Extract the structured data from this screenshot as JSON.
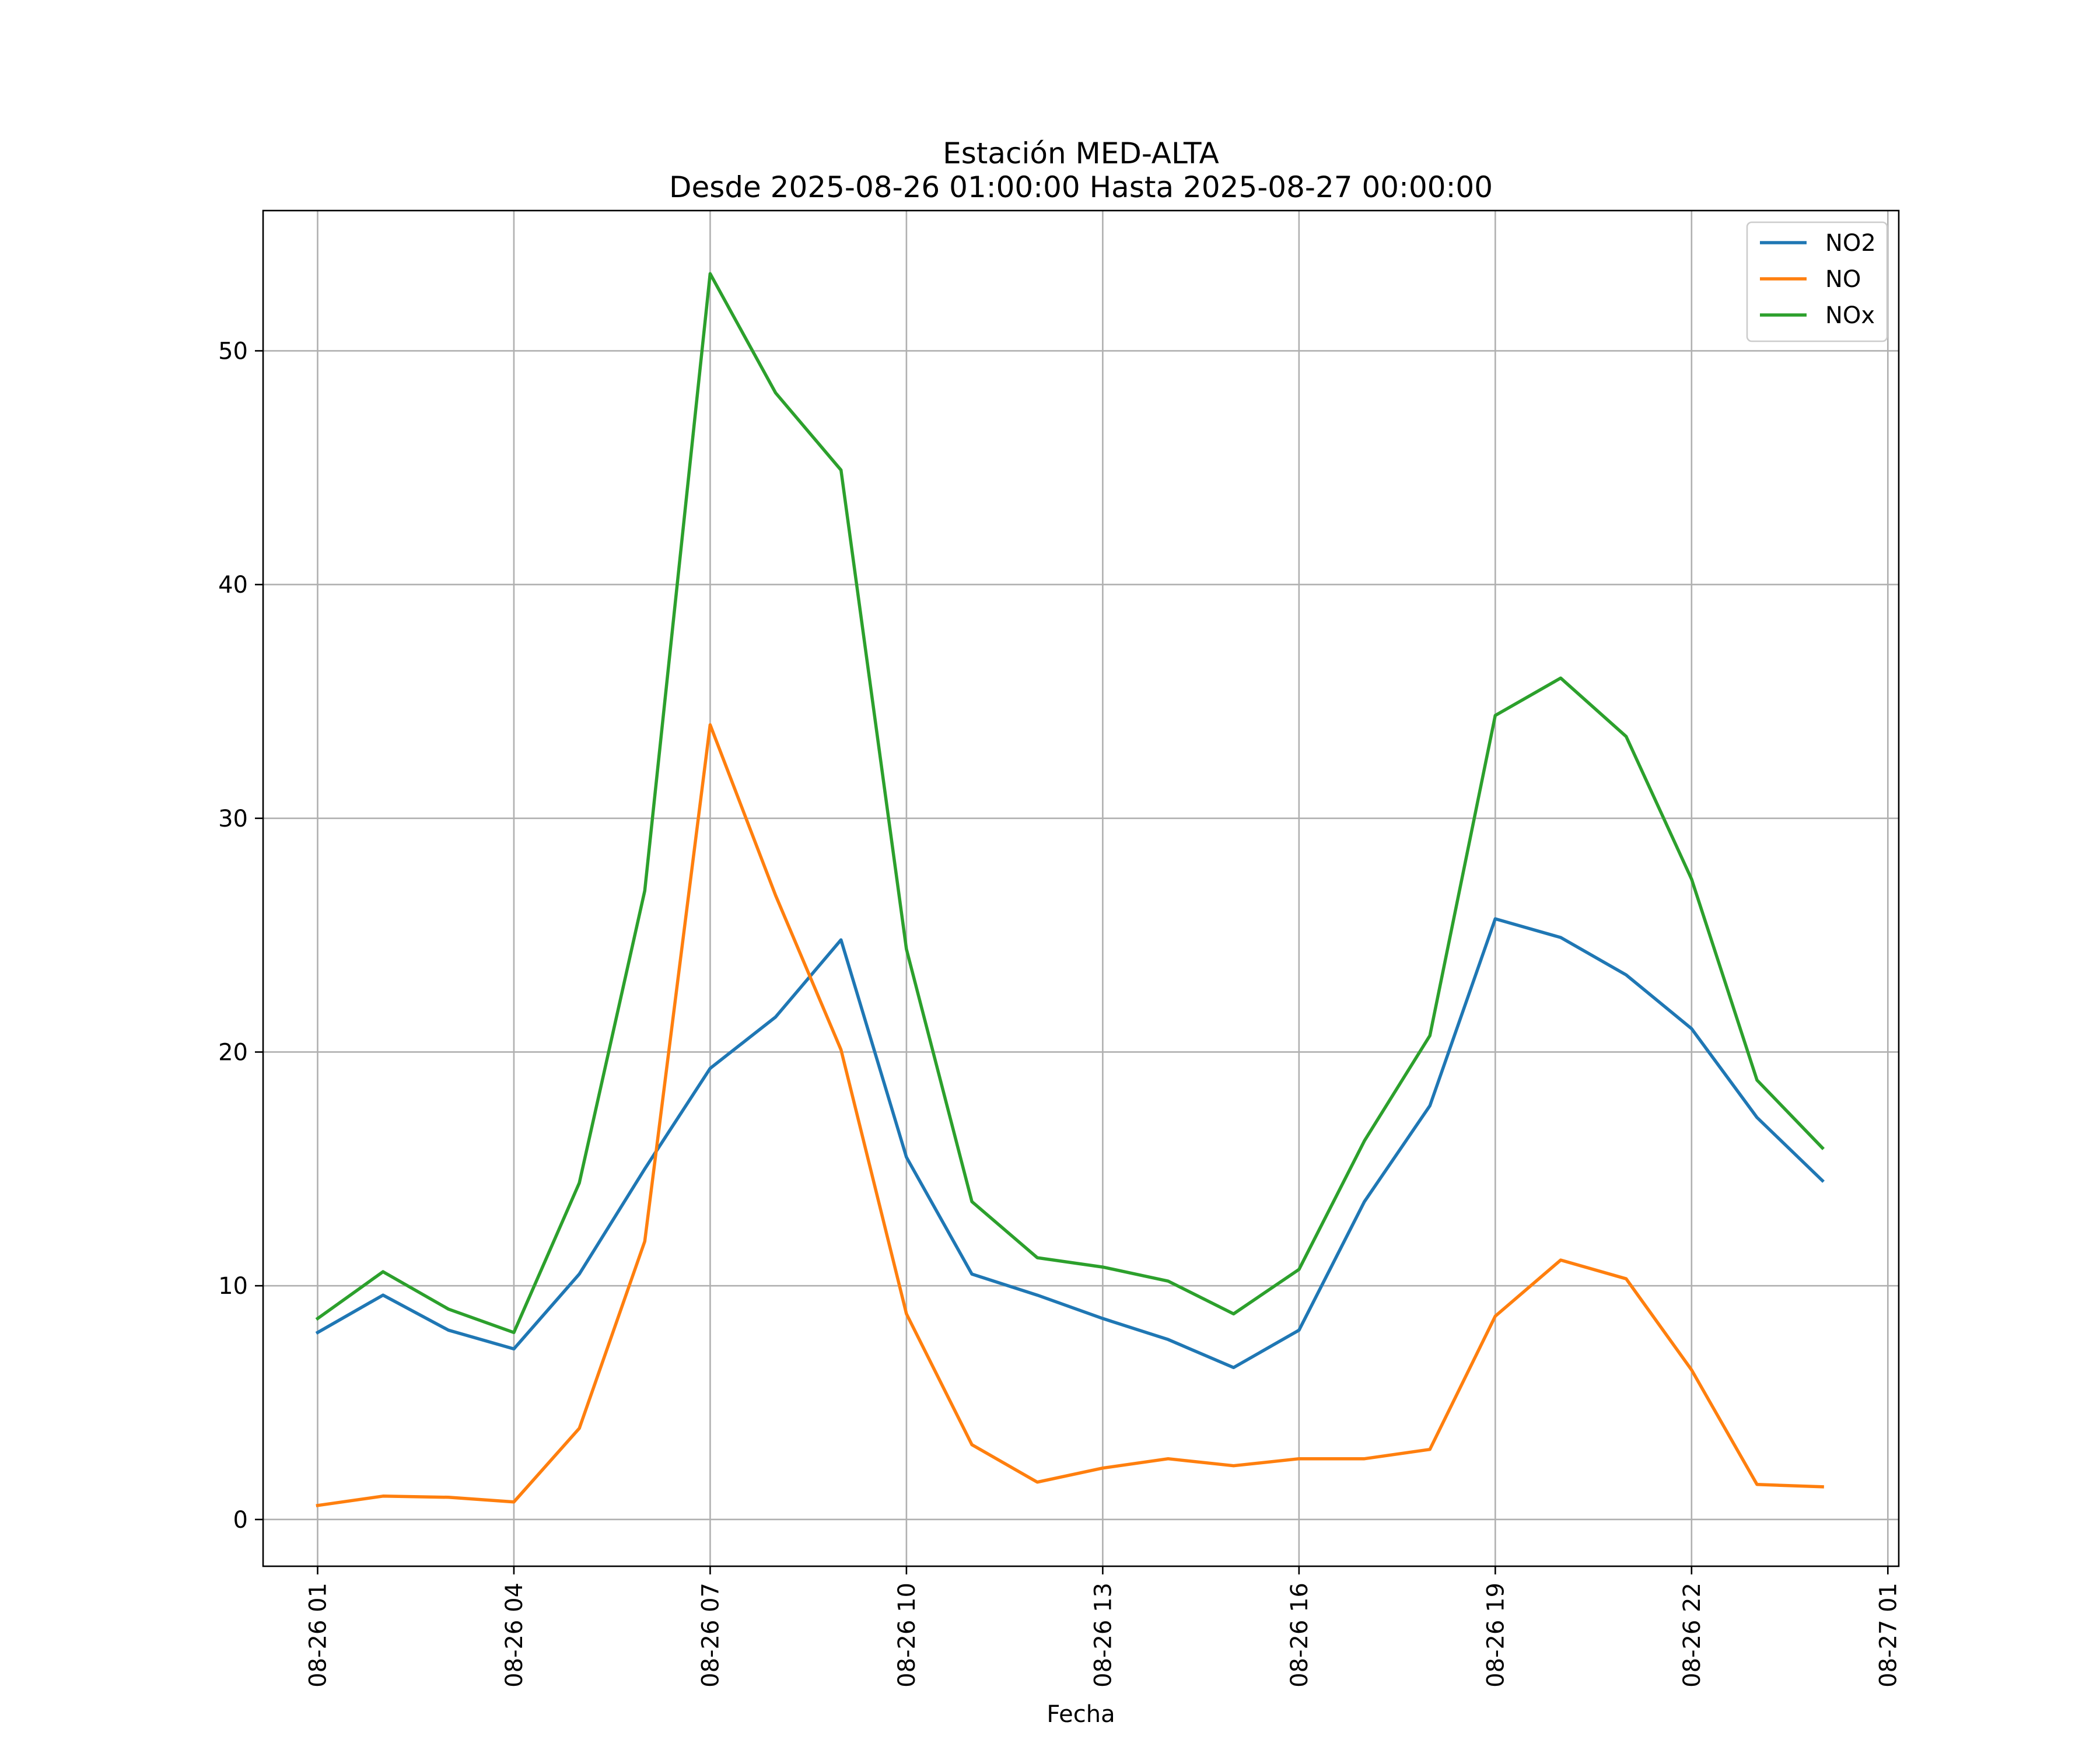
{
  "chart_data": {
    "type": "line",
    "title": "Estación MED-ALTA",
    "subtitle": "Desde 2025-08-26 01:00:00 Hasta 2025-08-27 00:00:00",
    "xlabel": "Fecha",
    "ylabel": "",
    "x": [
      "2025-08-26 01:00",
      "2025-08-26 02:00",
      "2025-08-26 03:00",
      "2025-08-26 04:00",
      "2025-08-26 05:00",
      "2025-08-26 06:00",
      "2025-08-26 07:00",
      "2025-08-26 08:00",
      "2025-08-26 09:00",
      "2025-08-26 10:00",
      "2025-08-26 11:00",
      "2025-08-26 12:00",
      "2025-08-26 13:00",
      "2025-08-26 14:00",
      "2025-08-26 15:00",
      "2025-08-26 16:00",
      "2025-08-26 17:00",
      "2025-08-26 18:00",
      "2025-08-26 19:00",
      "2025-08-26 20:00",
      "2025-08-26 21:00",
      "2025-08-26 22:00",
      "2025-08-26 23:00",
      "2025-08-27 00:00"
    ],
    "xlim": [
      "2025-08-26 00:10",
      "2025-08-27 01:10"
    ],
    "xticks": [
      {
        "x": "2025-08-26 01:00",
        "label": "08-26 01"
      },
      {
        "x": "2025-08-26 04:00",
        "label": "08-26 04"
      },
      {
        "x": "2025-08-26 07:00",
        "label": "08-26 07"
      },
      {
        "x": "2025-08-26 10:00",
        "label": "08-26 10"
      },
      {
        "x": "2025-08-26 13:00",
        "label": "08-26 13"
      },
      {
        "x": "2025-08-26 16:00",
        "label": "08-26 16"
      },
      {
        "x": "2025-08-26 19:00",
        "label": "08-26 19"
      },
      {
        "x": "2025-08-26 22:00",
        "label": "08-26 22"
      },
      {
        "x": "2025-08-27 01:00",
        "label": "08-27 01"
      }
    ],
    "ylim": [
      -2,
      56
    ],
    "yticks": [
      {
        "value": 0,
        "label": "0"
      },
      {
        "value": 10,
        "label": "10"
      },
      {
        "value": 20,
        "label": "20"
      },
      {
        "value": 30,
        "label": "30"
      },
      {
        "value": 40,
        "label": "40"
      },
      {
        "value": 50,
        "label": "50"
      }
    ],
    "grid": true,
    "legend_position": "top-right",
    "series": [
      {
        "name": "NO2",
        "color": "#1f77b4",
        "values": [
          8.0,
          9.6,
          8.1,
          7.3,
          10.5,
          15.0,
          19.3,
          21.5,
          24.8,
          15.5,
          10.5,
          9.6,
          8.6,
          7.7,
          6.5,
          8.1,
          13.6,
          17.7,
          25.7,
          24.9,
          23.3,
          21.0,
          17.2,
          14.5
        ]
      },
      {
        "name": "NO",
        "color": "#ff7f0e",
        "values": [
          0.6,
          1.0,
          0.95,
          0.75,
          3.9,
          11.9,
          34.0,
          26.7,
          20.1,
          8.8,
          3.2,
          1.6,
          2.2,
          2.6,
          2.3,
          2.6,
          2.6,
          3.0,
          8.7,
          11.1,
          10.3,
          6.4,
          1.5,
          1.4
        ]
      },
      {
        "name": "NOx",
        "color": "#2ca02c",
        "values": [
          8.6,
          10.6,
          9.0,
          8.0,
          14.4,
          26.9,
          53.3,
          48.2,
          44.9,
          24.4,
          13.6,
          11.2,
          10.8,
          10.2,
          8.8,
          10.7,
          16.2,
          20.7,
          34.4,
          36.0,
          33.5,
          27.4,
          18.8,
          15.9
        ]
      }
    ]
  }
}
